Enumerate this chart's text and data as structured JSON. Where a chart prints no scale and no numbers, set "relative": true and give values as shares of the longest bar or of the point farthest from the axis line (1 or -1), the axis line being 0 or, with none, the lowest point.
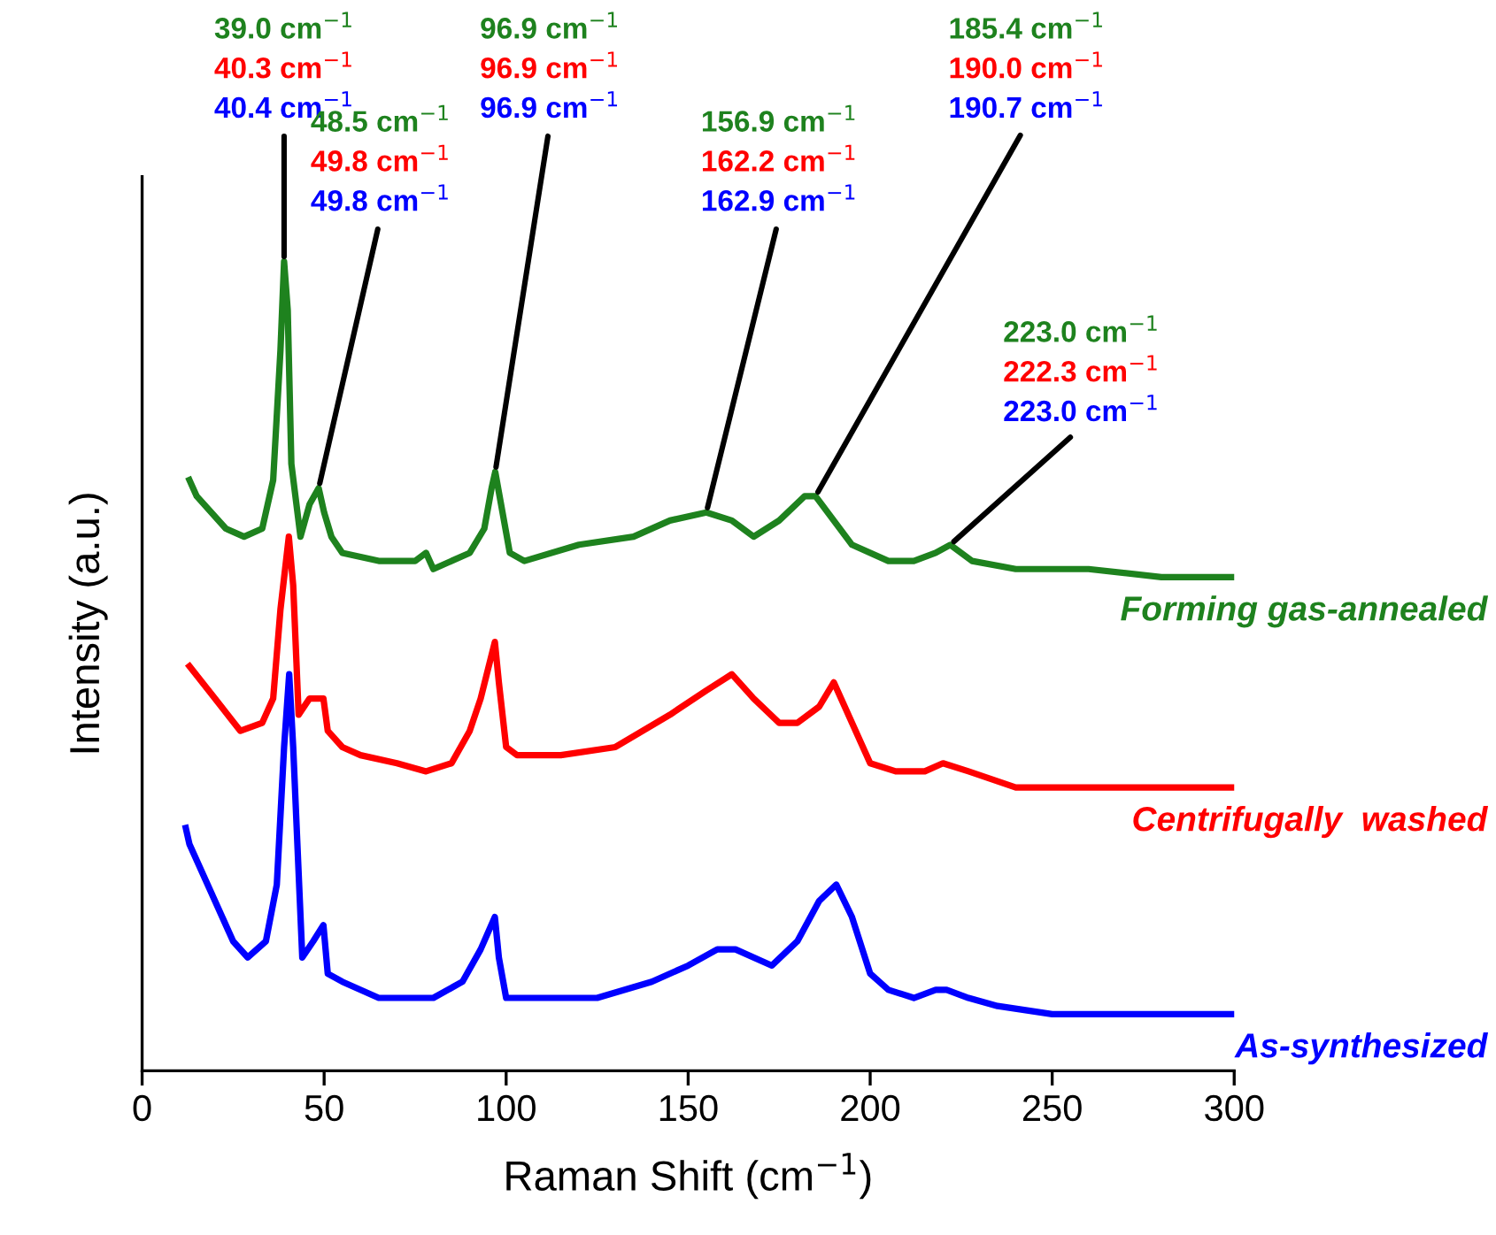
{
  "chart_data": {
    "type": "line",
    "relative": true,
    "xlabel": "Raman Shift (cm$^{−1}$)",
    "ylabel": "Intensity (a.u.)",
    "xlim": [
      0,
      300
    ],
    "xticks": [
      0,
      50,
      100,
      150,
      200,
      250,
      300
    ],
    "tick_labels": "x",
    "grid": false,
    "legend": false,
    "marker": "none",
    "line_style": "solid",
    "series": [
      {
        "name": "Forming gas-annealed",
        "color": "#1e821e",
        "x": [
          13,
          15,
          23,
          28,
          33,
          36,
          38,
          39,
          40,
          41,
          43.5,
          46,
          48.5,
          50,
          52,
          55,
          65,
          75,
          78,
          80,
          90,
          94,
          96,
          97,
          99,
          101,
          105,
          120,
          135,
          145,
          155,
          162,
          168,
          175,
          182,
          185,
          190,
          195,
          205,
          212,
          218,
          222,
          228,
          240,
          260,
          280,
          300
        ],
        "values": [
          0.73,
          0.71,
          0.67,
          0.66,
          0.67,
          0.73,
          0.89,
          1.0,
          0.94,
          0.75,
          0.66,
          0.7,
          0.72,
          0.69,
          0.66,
          0.64,
          0.63,
          0.63,
          0.64,
          0.62,
          0.64,
          0.67,
          0.72,
          0.74,
          0.69,
          0.64,
          0.63,
          0.65,
          0.66,
          0.68,
          0.69,
          0.68,
          0.66,
          0.68,
          0.71,
          0.71,
          0.68,
          0.65,
          0.63,
          0.63,
          0.64,
          0.65,
          0.63,
          0.62,
          0.62,
          0.61,
          0.61
        ]
      },
      {
        "name": "Centrifugally  washed",
        "color": "#ff0000",
        "x": [
          13,
          20,
          27,
          33,
          36,
          38,
          40.3,
          41.5,
          43,
          46,
          49.8,
          51,
          55,
          60,
          70,
          78,
          85,
          90,
          93,
          96.9,
          98,
          100,
          103,
          115,
          130,
          145,
          155,
          162,
          168,
          175,
          180,
          186,
          190,
          195,
          200,
          207,
          215,
          220,
          227,
          240,
          260,
          280,
          289,
          300
        ],
        "values": [
          0.5,
          0.46,
          0.42,
          0.43,
          0.46,
          0.57,
          0.66,
          0.6,
          0.44,
          0.46,
          0.46,
          0.42,
          0.4,
          0.39,
          0.38,
          0.37,
          0.38,
          0.42,
          0.46,
          0.53,
          0.48,
          0.4,
          0.39,
          0.39,
          0.4,
          0.44,
          0.47,
          0.49,
          0.46,
          0.43,
          0.43,
          0.45,
          0.48,
          0.43,
          0.38,
          0.37,
          0.37,
          0.38,
          0.37,
          0.35,
          0.35,
          0.35,
          0.35,
          0.35
        ]
      },
      {
        "name": "As-synthesized",
        "color": "#0000ff",
        "x": [
          12,
          13,
          20,
          25,
          29,
          34,
          37,
          39,
          40.4,
          41.5,
          44,
          47,
          49.8,
          51,
          55,
          65,
          75,
          80,
          88,
          93,
          96.9,
          98,
          100,
          110,
          125,
          140,
          150,
          158,
          163,
          173,
          180,
          186,
          190.7,
          195,
          200,
          205,
          212,
          218,
          221,
          227,
          235,
          250,
          270,
          300
        ],
        "values": [
          0.3,
          0.28,
          0.21,
          0.16,
          0.14,
          0.16,
          0.23,
          0.4,
          0.49,
          0.4,
          0.14,
          0.16,
          0.18,
          0.12,
          0.11,
          0.09,
          0.09,
          0.09,
          0.11,
          0.15,
          0.19,
          0.14,
          0.09,
          0.09,
          0.09,
          0.11,
          0.13,
          0.15,
          0.15,
          0.13,
          0.16,
          0.21,
          0.23,
          0.19,
          0.12,
          0.1,
          0.09,
          0.1,
          0.1,
          0.09,
          0.08,
          0.07,
          0.07,
          0.07
        ]
      }
    ],
    "annotations": [
      "39.0 cm$^{−1}$",
      "40.3 cm$^{−1}$",
      {
        "text": "40.4 cm$^{−1}$",
        "x": 39,
        "y": 1.0
      },
      "48.5 cm$^{−1}$",
      "49.8 cm$^{−1}$",
      {
        "text": "49.8 cm$^{−1}$",
        "x": 48.5,
        "y": 0.72
      },
      "96.9 cm$^{−1}$",
      "96.9 cm$^{−1}$",
      {
        "text": "96.9 cm$^{−1}$",
        "x": 97,
        "y": 0.74
      },
      "156.9 cm$^{−1}$",
      "162.2 cm$^{−1}$",
      {
        "text": "162.9 cm$^{−1}$",
        "x": 155,
        "y": 0.69
      },
      "185.4 cm$^{−1}$",
      "190.0 cm$^{−1}$",
      {
        "text": "190.7 cm$^{−1}$",
        "x": 185,
        "y": 0.71
      },
      "223.0 cm$^{−1}$",
      "222.3 cm$^{−1}$",
      {
        "text": "223.0 cm$^{−1}$",
        "x": 222,
        "y": 0.65
      }
    ]
  }
}
